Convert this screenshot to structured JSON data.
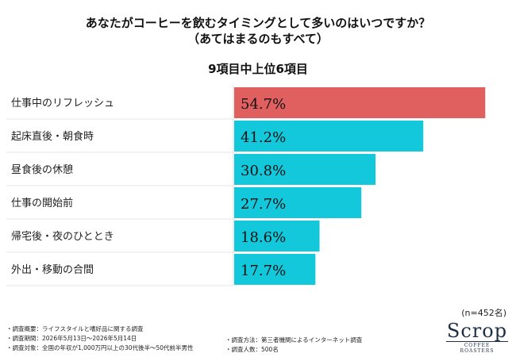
{
  "title_line1": "あなたがコーヒーを飲むタイミングとして多いのはいつですか？",
  "title_line2": "（あてはまるのもすべて）",
  "subtitle": "9項目中上位6項目",
  "sample_size": "(n=452名)",
  "notes": {
    "overview": "・調査概要：ライフスタイルと嗜好品に関する調査",
    "period": "・調査期間：2026年5月13日～2026年5月14日",
    "target": "・調査対象：全国の年収が1,000万円以上の30代後半～50代前半男性",
    "method": "・調査方法：第三者機関によるインターネット調査",
    "count": "・調査人数：500名"
  },
  "logo": {
    "main": "Scrop",
    "sub": "COFFEE ROASTERS"
  },
  "colors": {
    "highlight": "#e06060",
    "bar": "#14c8dc",
    "axis": "#d8d8d8"
  },
  "chart_data": {
    "type": "bar",
    "orientation": "horizontal",
    "categories": [
      "仕事中のリフレッシュ",
      "起床直後・朝食時",
      "昼食後の休憩",
      "仕事の開始前",
      "帰宅後・夜のひととき",
      "外出・移動の合間"
    ],
    "values": [
      54.7,
      41.2,
      30.8,
      27.7,
      18.6,
      17.7
    ],
    "value_labels": [
      "54.7%",
      "41.2%",
      "30.8%",
      "27.7%",
      "18.6%",
      "17.7%"
    ],
    "unit": "%",
    "xlim": [
      0,
      55
    ],
    "highlight_index": 0
  }
}
